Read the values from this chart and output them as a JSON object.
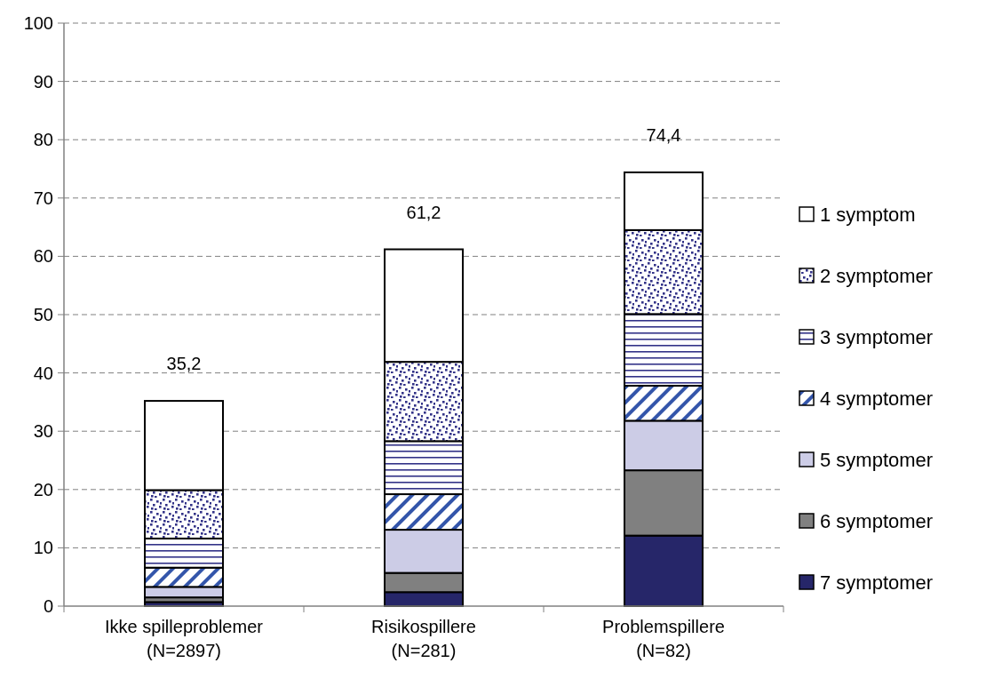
{
  "chart_data": {
    "type": "bar",
    "stacked": true,
    "categories": [
      "Ikke spilleproblemer\n(N=2897)",
      "Risikospillere\n(N=281)",
      "Problemspillere\n(N=82)"
    ],
    "series": [
      {
        "name": "7 symptomer",
        "color": "#262669",
        "values": [
          0.7,
          2.4,
          12.1
        ]
      },
      {
        "name": "6 symptomer",
        "color": "#808080",
        "values": [
          0.8,
          3.3,
          11.2
        ]
      },
      {
        "name": "5 symptomer",
        "color": "#ccccE6",
        "values": [
          1.8,
          7.4,
          8.5
        ]
      },
      {
        "name": "4 symptomer",
        "color": "#3355aa",
        "values": [
          3.3,
          6.1,
          6.0
        ]
      },
      {
        "name": "3 symptomer",
        "color": "#333388",
        "values": [
          5.0,
          9.1,
          12.3
        ]
      },
      {
        "name": "2 symptomer",
        "color": "#333388",
        "values": [
          8.3,
          13.6,
          14.4
        ]
      },
      {
        "name": "1 symptom",
        "color": "#ffffff",
        "values": [
          15.3,
          19.3,
          9.9
        ]
      }
    ],
    "totals": [
      "35,2",
      "61,2",
      "74,4"
    ],
    "ylim": [
      0,
      100
    ],
    "yticks": [
      0,
      10,
      20,
      30,
      40,
      50,
      60,
      70,
      80,
      90,
      100
    ],
    "grid": "y",
    "legend": "right"
  }
}
